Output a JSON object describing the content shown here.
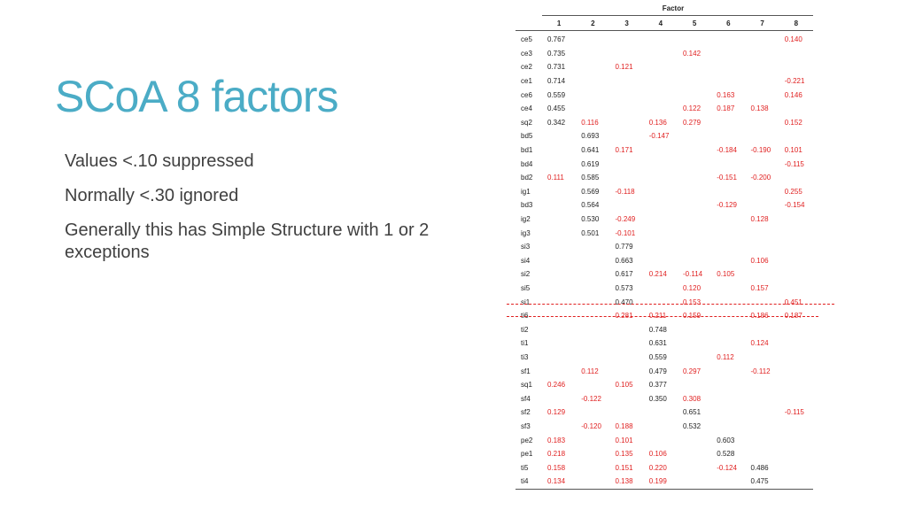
{
  "slide": {
    "title": "SCoA 8 factors",
    "bullets": [
      "Values <.10 suppressed",
      "Normally <.30 ignored",
      "Generally this has Simple Structure with 1 or 2 exceptions"
    ]
  },
  "table": {
    "caption": "Factor",
    "columns": [
      "1",
      "2",
      "3",
      "4",
      "5",
      "6",
      "7",
      "8"
    ],
    "primary_color": "#222222",
    "secondary_color": "#e02020",
    "rows": [
      {
        "label": "ce5",
        "primary": 1,
        "values": [
          "0.767",
          "",
          "",
          "",
          "",
          "",
          "",
          "0.140"
        ]
      },
      {
        "label": "ce3",
        "primary": 1,
        "values": [
          "0.735",
          "",
          "",
          "",
          "0.142",
          "",
          "",
          ""
        ]
      },
      {
        "label": "ce2",
        "primary": 1,
        "values": [
          "0.731",
          "",
          "0.121",
          "",
          "",
          "",
          "",
          ""
        ]
      },
      {
        "label": "ce1",
        "primary": 1,
        "values": [
          "0.714",
          "",
          "",
          "",
          "",
          "",
          "",
          "-0.221"
        ]
      },
      {
        "label": "ce6",
        "primary": 1,
        "values": [
          "0.559",
          "",
          "",
          "",
          "",
          "0.163",
          "",
          "0.146"
        ]
      },
      {
        "label": "ce4",
        "primary": 1,
        "values": [
          "0.455",
          "",
          "",
          "",
          "0.122",
          "0.187",
          "0.138",
          ""
        ]
      },
      {
        "label": "sq2",
        "primary": 1,
        "values": [
          "0.342",
          "0.116",
          "",
          "0.136",
          "0.279",
          "",
          "",
          "0.152"
        ]
      },
      {
        "label": "bd5",
        "primary": 2,
        "values": [
          "",
          "0.693",
          "",
          "-0.147",
          "",
          "",
          "",
          ""
        ]
      },
      {
        "label": "bd1",
        "primary": 2,
        "values": [
          "",
          "0.641",
          "0.171",
          "",
          "",
          "-0.184",
          "-0.190",
          "0.101"
        ]
      },
      {
        "label": "bd4",
        "primary": 2,
        "values": [
          "",
          "0.619",
          "",
          "",
          "",
          "",
          "",
          "-0.115"
        ]
      },
      {
        "label": "bd2",
        "primary": 2,
        "values": [
          "0.111",
          "0.585",
          "",
          "",
          "",
          "-0.151",
          "-0.200",
          ""
        ]
      },
      {
        "label": "ig1",
        "primary": 2,
        "values": [
          "",
          "0.569",
          "-0.118",
          "",
          "",
          "",
          "",
          "0.255"
        ]
      },
      {
        "label": "bd3",
        "primary": 2,
        "values": [
          "",
          "0.564",
          "",
          "",
          "",
          "-0.129",
          "",
          "-0.154"
        ]
      },
      {
        "label": "ig2",
        "primary": 2,
        "values": [
          "",
          "0.530",
          "-0.249",
          "",
          "",
          "",
          "0.128",
          ""
        ]
      },
      {
        "label": "ig3",
        "primary": 2,
        "values": [
          "",
          "0.501",
          "-0.101",
          "",
          "",
          "",
          "",
          ""
        ]
      },
      {
        "label": "si3",
        "primary": 3,
        "values": [
          "",
          "",
          "0.779",
          "",
          "",
          "",
          "",
          ""
        ]
      },
      {
        "label": "si4",
        "primary": 3,
        "values": [
          "",
          "",
          "0.663",
          "",
          "",
          "",
          "0.106",
          ""
        ]
      },
      {
        "label": "si2",
        "primary": 3,
        "values": [
          "",
          "",
          "0.617",
          "0.214",
          "-0.114",
          "0.105",
          "",
          ""
        ]
      },
      {
        "label": "si5",
        "primary": 3,
        "values": [
          "",
          "",
          "0.573",
          "",
          "0.120",
          "",
          "0.157",
          ""
        ]
      },
      {
        "label": "si1",
        "primary": 3,
        "values": [
          "",
          "",
          "0.470",
          "",
          "0.153",
          "",
          "",
          "0.451"
        ]
      },
      {
        "label": "ti6",
        "primary": 0,
        "values": [
          "",
          "",
          "0.281",
          "0.211",
          "0.159",
          "",
          "0.186",
          "0.187"
        ]
      },
      {
        "label": "ti2",
        "primary": 4,
        "values": [
          "",
          "",
          "",
          "0.748",
          "",
          "",
          "",
          ""
        ]
      },
      {
        "label": "ti1",
        "primary": 4,
        "values": [
          "",
          "",
          "",
          "0.631",
          "",
          "",
          "0.124",
          ""
        ]
      },
      {
        "label": "ti3",
        "primary": 4,
        "values": [
          "",
          "",
          "",
          "0.559",
          "",
          "0.112",
          "",
          ""
        ]
      },
      {
        "label": "sf1",
        "primary": 4,
        "values": [
          "",
          "0.112",
          "",
          "0.479",
          "0.297",
          "",
          "-0.112",
          ""
        ]
      },
      {
        "label": "sq1",
        "primary": 4,
        "values": [
          "0.246",
          "",
          "0.105",
          "0.377",
          "",
          "",
          "",
          ""
        ]
      },
      {
        "label": "sf4",
        "primary": 4,
        "values": [
          "",
          "-0.122",
          "",
          "0.350",
          "0.308",
          "",
          "",
          ""
        ]
      },
      {
        "label": "sf2",
        "primary": 5,
        "values": [
          "0.129",
          "",
          "",
          "",
          "0.651",
          "",
          "",
          "-0.115"
        ]
      },
      {
        "label": "sf3",
        "primary": 5,
        "values": [
          "",
          "-0.120",
          "0.188",
          "",
          "0.532",
          "",
          "",
          ""
        ]
      },
      {
        "label": "pe2",
        "primary": 6,
        "values": [
          "0.183",
          "",
          "0.101",
          "",
          "",
          "0.603",
          "",
          ""
        ]
      },
      {
        "label": "pe1",
        "primary": 6,
        "values": [
          "0.218",
          "",
          "0.135",
          "0.106",
          "",
          "0.528",
          "",
          ""
        ]
      },
      {
        "label": "ti5",
        "primary": 7,
        "values": [
          "0.158",
          "",
          "0.151",
          "0.220",
          "",
          "-0.124",
          "0.486",
          ""
        ]
      },
      {
        "label": "ti4",
        "primary": 7,
        "values": [
          "0.134",
          "",
          "0.138",
          "0.199",
          "",
          "",
          "0.475",
          ""
        ]
      }
    ]
  }
}
